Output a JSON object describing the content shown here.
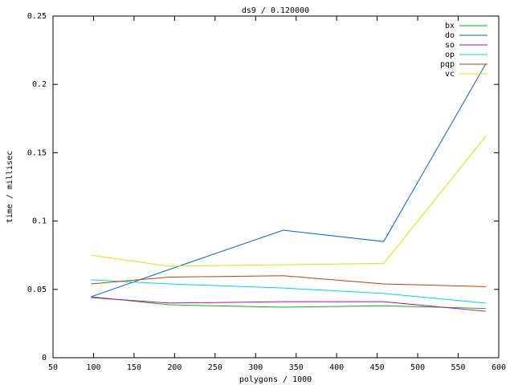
{
  "chart_data": {
    "type": "line",
    "title": "ds9 / 0.120000",
    "x_label": "polygons / 1000",
    "y_label": "time / millisec",
    "x": [
      97,
      193,
      334,
      458,
      584
    ],
    "series": [
      {
        "name": "bx",
        "color": "#00c000",
        "values": [
          0.0446,
          0.0387,
          0.037,
          0.038,
          0.036
        ]
      },
      {
        "name": "do",
        "color": "#0060e0",
        "values": [
          0.0446,
          0.0645,
          0.0933,
          0.085,
          0.215
        ]
      },
      {
        "name": "so",
        "color": "#c000c0",
        "values": [
          0.044,
          0.04,
          0.041,
          0.041,
          0.034
        ]
      },
      {
        "name": "op",
        "color": "#00d8d8",
        "values": [
          0.057,
          0.054,
          0.051,
          0.047,
          0.04
        ]
      },
      {
        "name": "pqp",
        "color": "#c04000",
        "values": [
          0.054,
          0.059,
          0.06,
          0.054,
          0.052
        ]
      },
      {
        "name": "vc",
        "color": "#e0e000",
        "values": [
          0.075,
          0.067,
          0.068,
          0.069,
          0.162
        ]
      }
    ],
    "xlim": [
      50,
      600
    ],
    "xticks": [
      50,
      100,
      150,
      200,
      250,
      300,
      350,
      400,
      450,
      500,
      550,
      600
    ],
    "ylim": [
      0,
      0.25
    ],
    "yticks": [
      0,
      0.05,
      0.1,
      0.15,
      0.2,
      0.25
    ],
    "legend": "top-right"
  }
}
